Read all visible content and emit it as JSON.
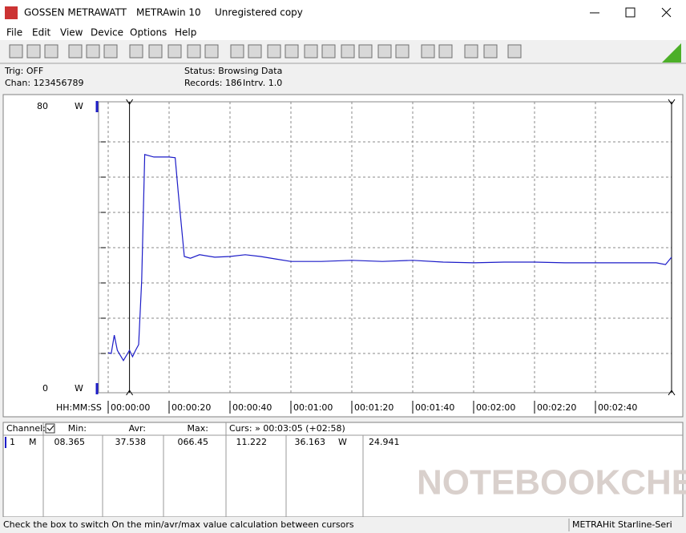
{
  "window": {
    "app": "GOSSEN METRAWATT",
    "product": "METRAwin 10",
    "license": "Unregistered copy"
  },
  "menu": [
    "File",
    "Edit",
    "View",
    "Device",
    "Options",
    "Help"
  ],
  "info": {
    "trigger": "Trig: OFF",
    "channels": "Chan: 123456789",
    "status": "Status: Browsing Data",
    "records": "Records: 186",
    "interval": "Intrv. 1.0"
  },
  "chart_data": {
    "type": "line",
    "x_label": "HH:MM:SS",
    "y_unit": "W",
    "x": [
      0,
      1,
      2,
      3,
      5,
      7,
      8,
      9,
      10,
      11,
      12,
      15,
      20,
      22,
      23,
      25,
      27,
      30,
      35,
      40,
      45,
      50,
      55,
      60,
      70,
      80,
      90,
      100,
      110,
      120,
      130,
      140,
      150,
      160,
      170,
      180,
      183,
      185
    ],
    "series": [
      {
        "name": "1",
        "color": "#1c1cc8",
        "values": [
          10.2,
          10.0,
          15.2,
          10.9,
          8.0,
          10.9,
          9.1,
          10.9,
          12.5,
          30.7,
          66.4,
          65.7,
          65.7,
          65.5,
          55.7,
          37.5,
          37.0,
          38.0,
          37.3,
          37.5,
          38.0,
          37.5,
          36.8,
          36.1,
          36.1,
          36.4,
          36.1,
          36.4,
          35.9,
          35.7,
          35.9,
          35.9,
          35.7,
          35.7,
          35.7,
          35.7,
          35.2,
          37.3
        ]
      }
    ],
    "xlim": [
      0,
      185
    ],
    "ylim": [
      0,
      80
    ],
    "xticks": [
      {
        "value": 0,
        "label": "00:00:00"
      },
      {
        "value": 20,
        "label": "00:00:20"
      },
      {
        "value": 40,
        "label": "00:00:40"
      },
      {
        "value": 60,
        "label": "00:01:00"
      },
      {
        "value": 80,
        "label": "00:01:20"
      },
      {
        "value": 100,
        "label": "00:01:40"
      },
      {
        "value": 120,
        "label": "00:02:00"
      },
      {
        "value": 140,
        "label": "00:02:20"
      },
      {
        "value": 160,
        "label": "00:02:40"
      }
    ],
    "yticks": [
      0,
      80
    ],
    "grid_y": [
      10,
      20,
      30,
      40,
      50,
      60,
      70
    ],
    "cursors": [
      7,
      185
    ],
    "grid": true
  },
  "table": {
    "header": [
      "Channel:",
      "Min:",
      "Avr:",
      "Max:",
      "Curs: » 00:03:05 (+02:58)"
    ],
    "rows": [
      [
        "1",
        "M",
        "08.365",
        "37.538",
        "066.45",
        "11.222",
        "36.163",
        "W",
        "24.941"
      ]
    ]
  },
  "statusbar": {
    "hint": "Check the box to switch On the min/avr/max value calculation between cursors",
    "device": "METRAHit Starline-Seri"
  },
  "watermark": "NOTEBOOKCHECK"
}
